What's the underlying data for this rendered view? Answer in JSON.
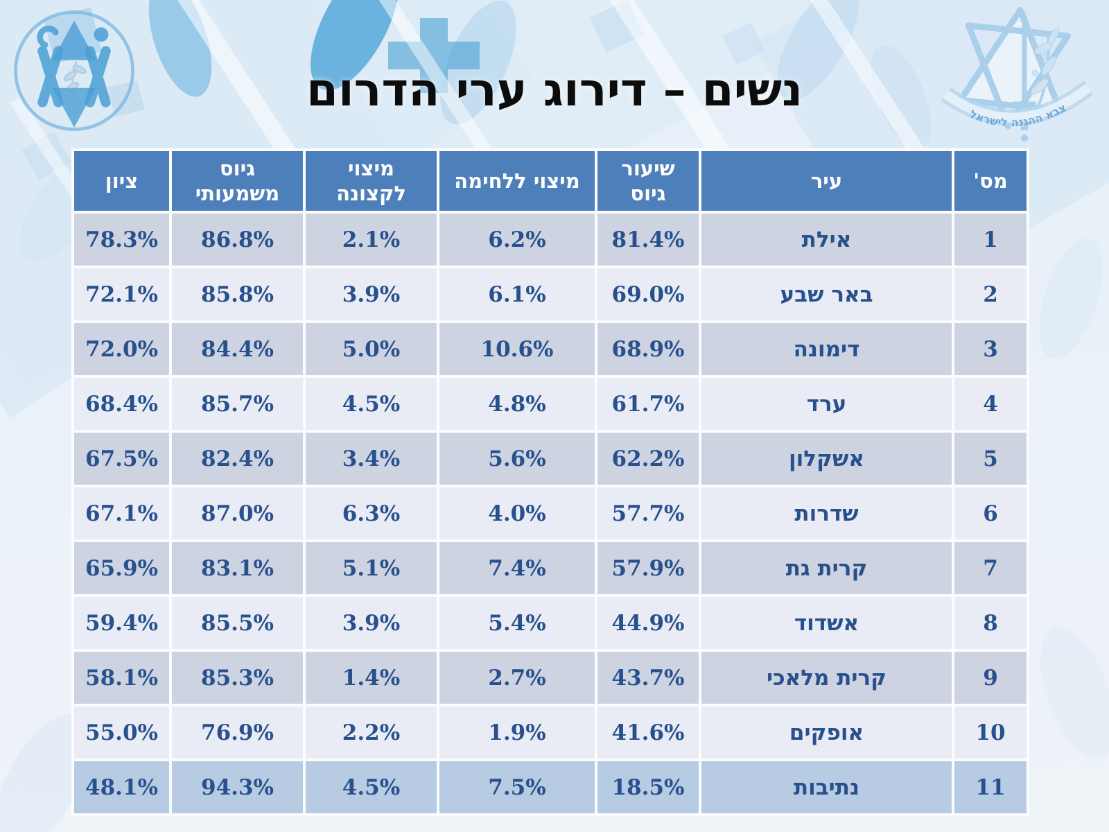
{
  "slide": {
    "title": "נשים – דירוג ערי הדרום"
  },
  "logos": {
    "idf_banner_text": "צבא ההגנה לישראל"
  },
  "table": {
    "columns": [
      {
        "key": "num",
        "label": "מס'"
      },
      {
        "key": "city",
        "label": "עיר"
      },
      {
        "key": "recruit",
        "label": "שיעור גיוס"
      },
      {
        "key": "combat",
        "label": "מיצוי ללחימה"
      },
      {
        "key": "officer",
        "label": "מיצוי לקצונה"
      },
      {
        "key": "meaningful",
        "label": "גיוס משמעותי"
      },
      {
        "key": "score",
        "label": "ציון"
      }
    ],
    "rows": [
      {
        "num": "1",
        "city": "אילת",
        "recruit": "81.4%",
        "combat": "6.2%",
        "officer": "2.1%",
        "meaningful": "86.8%",
        "score": "78.3%"
      },
      {
        "num": "2",
        "city": "באר שבע",
        "recruit": "69.0%",
        "combat": "6.1%",
        "officer": "3.9%",
        "meaningful": "85.8%",
        "score": "72.1%"
      },
      {
        "num": "3",
        "city": "דימונה",
        "recruit": "68.9%",
        "combat": "10.6%",
        "officer": "5.0%",
        "meaningful": "84.4%",
        "score": "72.0%"
      },
      {
        "num": "4",
        "city": "ערד",
        "recruit": "61.7%",
        "combat": "4.8%",
        "officer": "4.5%",
        "meaningful": "85.7%",
        "score": "68.4%"
      },
      {
        "num": "5",
        "city": "אשקלון",
        "recruit": "62.2%",
        "combat": "5.6%",
        "officer": "3.4%",
        "meaningful": "82.4%",
        "score": "67.5%"
      },
      {
        "num": "6",
        "city": "שדרות",
        "recruit": "57.7%",
        "combat": "4.0%",
        "officer": "6.3%",
        "meaningful": "87.0%",
        "score": "67.1%"
      },
      {
        "num": "7",
        "city": "קרית גת",
        "recruit": "57.9%",
        "combat": "7.4%",
        "officer": "5.1%",
        "meaningful": "83.1%",
        "score": "65.9%"
      },
      {
        "num": "8",
        "city": "אשדוד",
        "recruit": "44.9%",
        "combat": "5.4%",
        "officer": "3.9%",
        "meaningful": "85.5%",
        "score": "59.4%"
      },
      {
        "num": "9",
        "city": "קרית מלאכי",
        "recruit": "43.7%",
        "combat": "2.7%",
        "officer": "1.4%",
        "meaningful": "85.3%",
        "score": "58.1%"
      },
      {
        "num": "10",
        "city": "אופקים",
        "recruit": "41.6%",
        "combat": "1.9%",
        "officer": "2.2%",
        "meaningful": "76.9%",
        "score": "55.0%"
      },
      {
        "num": "11",
        "city": "נתיבות",
        "recruit": "18.5%",
        "combat": "7.5%",
        "officer": "4.5%",
        "meaningful": "94.3%",
        "score": "48.1%"
      }
    ]
  },
  "colors": {
    "header_bg": "#4d7fba",
    "header_text": "#ffffff",
    "row_odd_bg": "#cdd3e1",
    "row_even_bg": "#e9ecf4",
    "row_last_bg": "#b7cbe2",
    "data_text": "#27508d",
    "city_text": "#1d3b6c",
    "title_text": "#0c0c0c"
  }
}
